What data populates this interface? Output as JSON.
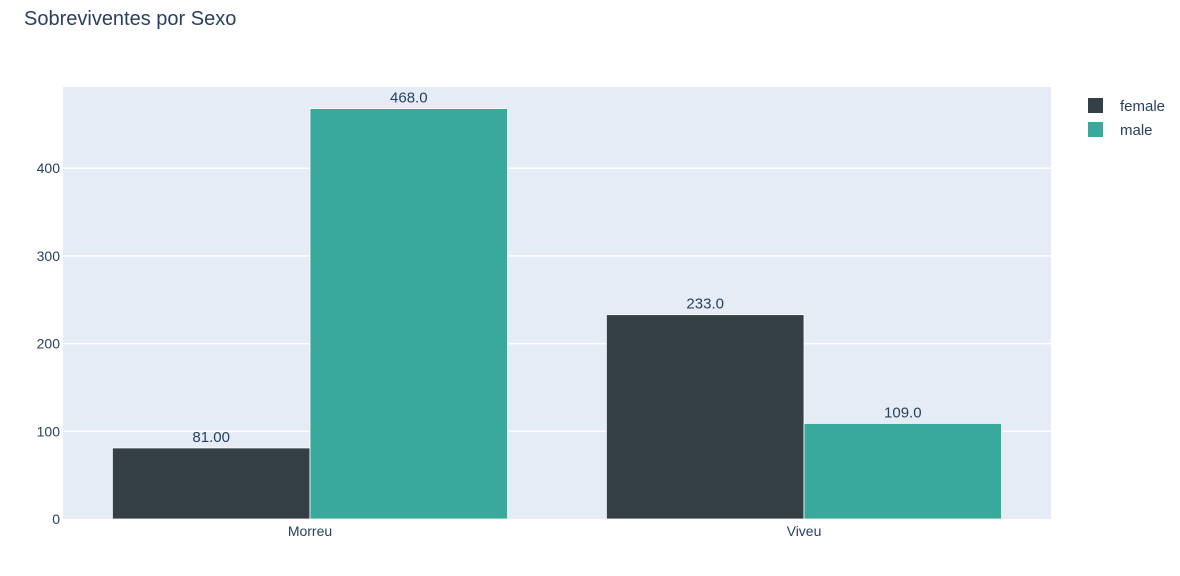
{
  "chart_data": {
    "type": "bar",
    "title": "Sobreviventes por Sexo",
    "xlabel": "",
    "ylabel": "",
    "categories": [
      "Morreu",
      "Viveu"
    ],
    "series": [
      {
        "name": "female",
        "color": "#343f46",
        "values": [
          81,
          233
        ],
        "labels": [
          "81.00",
          "233.0"
        ]
      },
      {
        "name": "male",
        "color": "#38a99b",
        "values": [
          468,
          109
        ],
        "labels": [
          "468.0",
          "109.0"
        ]
      }
    ],
    "ylim": [
      0,
      492.6
    ],
    "yticks": [
      0,
      100,
      200,
      300,
      400
    ],
    "ytick_labels": [
      "0",
      "100",
      "200",
      "300",
      "400"
    ],
    "grid": true,
    "legend_position": "top-right",
    "plot_bgcolor": "#e5ecf6"
  }
}
